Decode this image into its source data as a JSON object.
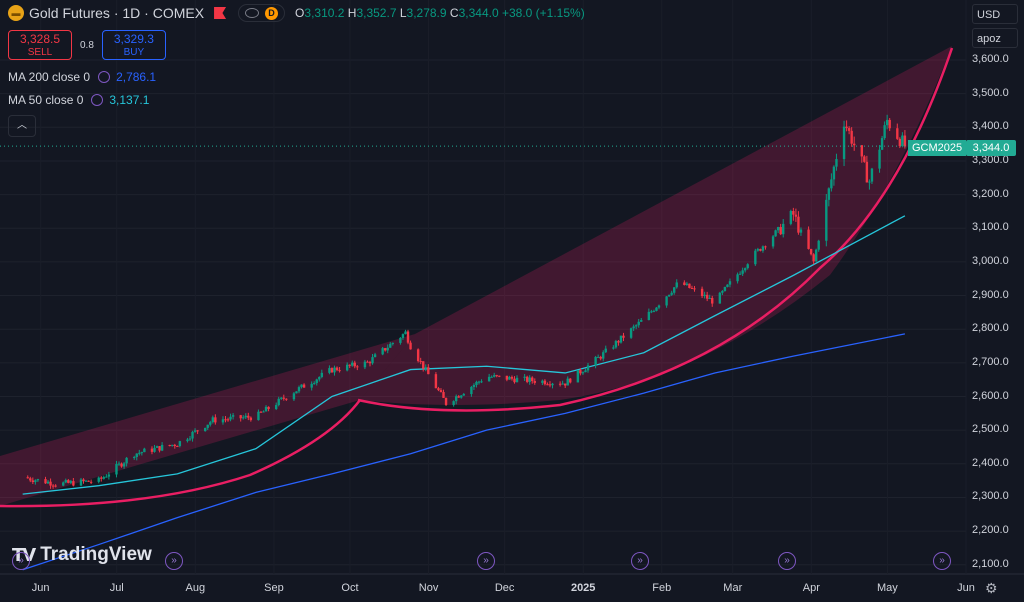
{
  "header": {
    "title": "Gold Futures · 1D · COMEX",
    "ohlc": [
      {
        "k": "O",
        "v": "3,310.2"
      },
      {
        "k": "H",
        "v": "3,352.7"
      },
      {
        "k": "L",
        "v": "3,278.9"
      },
      {
        "k": "C",
        "v": "3,344.0 +38.0 (+1.15%)"
      }
    ],
    "data_badge": "D"
  },
  "trade": {
    "sell_price": "3,328.5",
    "sell_label": "SELL",
    "spread": "0.8",
    "buy_price": "3,329.3",
    "buy_label": "BUY"
  },
  "indicators": [
    {
      "label": "MA 200 close 0",
      "value": "2,786.1",
      "color": "#2962ff"
    },
    {
      "label": "MA 50 close 0",
      "value": "3,137.1",
      "color": "#26c6da"
    }
  ],
  "right_controls": {
    "currency": "USD",
    "unit": "apoz"
  },
  "last_price": {
    "symbol": "GCM2025",
    "value": "3,344.0"
  },
  "watermark": "TradingView",
  "colors": {
    "background": "#131722",
    "up": "#089981",
    "down": "#f23645",
    "ma200": "#2962ff",
    "ma50": "#26c6da",
    "pattern": "#e91e63"
  },
  "chart_data": {
    "type": "candlestick",
    "y_ticks": [
      "3,600.0",
      "3,500.0",
      "3,400.0",
      "3,300.0",
      "3,200.0",
      "3,100.0",
      "3,000.0",
      "2,900.0",
      "2,800.0",
      "2,700.0",
      "2,600.0",
      "2,500.0",
      "2,400.0",
      "2,300.0",
      "2,200.0",
      "2,100.0"
    ],
    "x_ticks": [
      "Jun",
      "Jul",
      "Aug",
      "Sep",
      "Oct",
      "Nov",
      "Dec",
      "2025",
      "Feb",
      "Mar",
      "Apr",
      "May",
      "Jun"
    ],
    "ylim": [
      2050,
      3650
    ],
    "series": [
      {
        "name": "MA 200 close 0",
        "color": "#2962ff",
        "points": [
          [
            "2024-06-01",
            2085
          ],
          [
            "2024-07-01",
            2160
          ],
          [
            "2024-08-01",
            2240
          ],
          [
            "2024-09-01",
            2315
          ],
          [
            "2024-10-01",
            2370
          ],
          [
            "2024-11-01",
            2430
          ],
          [
            "2024-12-01",
            2500
          ],
          [
            "2025-01-01",
            2550
          ],
          [
            "2025-02-01",
            2610
          ],
          [
            "2025-03-01",
            2670
          ],
          [
            "2025-04-01",
            2720
          ],
          [
            "2025-05-15",
            2786
          ]
        ]
      },
      {
        "name": "MA 50 close 0",
        "color": "#26c6da",
        "points": [
          [
            "2024-06-01",
            2310
          ],
          [
            "2024-07-01",
            2335
          ],
          [
            "2024-08-01",
            2370
          ],
          [
            "2024-09-01",
            2445
          ],
          [
            "2024-10-01",
            2600
          ],
          [
            "2024-11-01",
            2680
          ],
          [
            "2024-12-01",
            2690
          ],
          [
            "2025-01-01",
            2670
          ],
          [
            "2025-02-01",
            2730
          ],
          [
            "2025-03-01",
            2840
          ],
          [
            "2025-04-01",
            2960
          ],
          [
            "2025-05-15",
            3137
          ]
        ]
      }
    ],
    "candles_close": [
      [
        "2024-06-01",
        2360
      ],
      [
        "2024-06-15",
        2340
      ],
      [
        "2024-07-01",
        2350
      ],
      [
        "2024-07-15",
        2430
      ],
      [
        "2024-08-01",
        2460
      ],
      [
        "2024-08-15",
        2530
      ],
      [
        "2024-09-01",
        2540
      ],
      [
        "2024-09-15",
        2610
      ],
      [
        "2024-10-01",
        2680
      ],
      [
        "2024-10-15",
        2700
      ],
      [
        "2024-10-30",
        2790
      ],
      [
        "2024-11-01",
        2750
      ],
      [
        "2024-11-15",
        2580
      ],
      [
        "2024-12-01",
        2660
      ],
      [
        "2024-12-15",
        2650
      ],
      [
        "2025-01-01",
        2640
      ],
      [
        "2025-01-15",
        2720
      ],
      [
        "2025-02-01",
        2830
      ],
      [
        "2025-02-15",
        2940
      ],
      [
        "2025-03-01",
        2880
      ],
      [
        "2025-03-15",
        3010
      ],
      [
        "2025-04-01",
        3140
      ],
      [
        "2025-04-09",
        3000
      ],
      [
        "2025-04-21",
        3420
      ],
      [
        "2025-05-01",
        3240
      ],
      [
        "2025-05-08",
        3420
      ],
      [
        "2025-05-15",
        3344
      ]
    ]
  }
}
